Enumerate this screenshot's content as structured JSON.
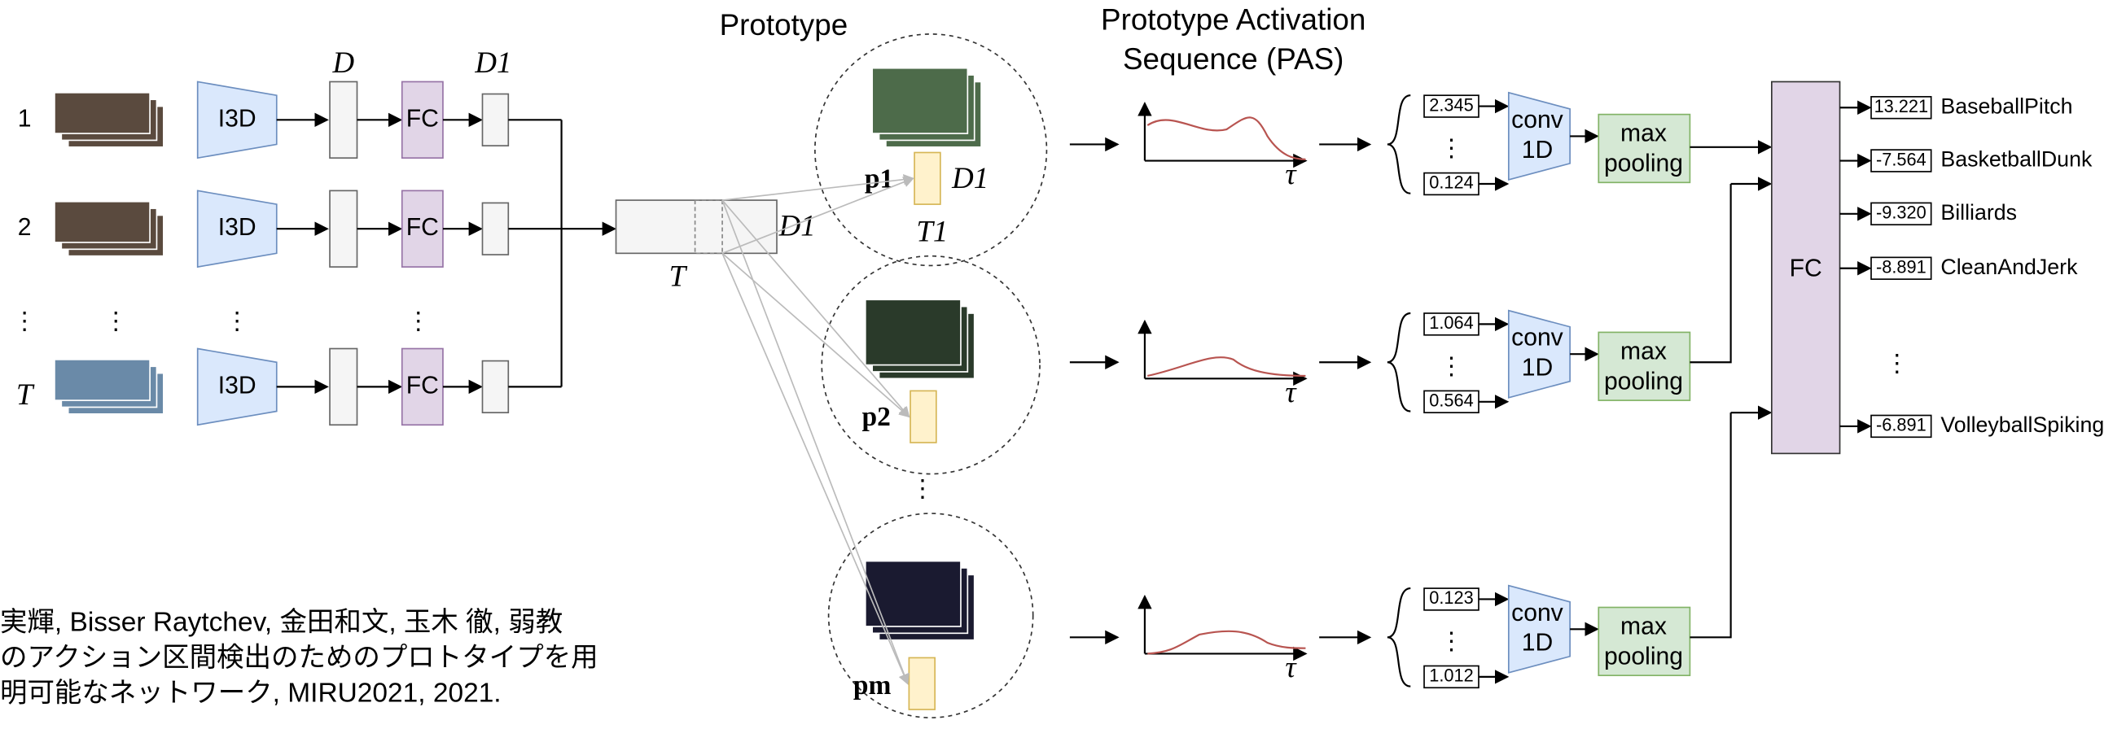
{
  "inputs": {
    "labels": [
      "1",
      "2",
      "⋮",
      "T"
    ],
    "encoder": "I3D",
    "fc": "FC",
    "dim_D": "D",
    "dim_D1": "D1",
    "vdots": "⋮"
  },
  "sequence": {
    "length": "T",
    "dim": "D1"
  },
  "prototype": {
    "title": "Prototype",
    "p1": "p1",
    "p2": "p2",
    "pm": "pm",
    "dim": "D1",
    "len": "T1",
    "dots": "⋮"
  },
  "pas": {
    "title_line1": "Prototype Activation",
    "title_line2": "Sequence (PAS)",
    "tau": "τ"
  },
  "branches": [
    {
      "top": "2.345",
      "bottom": "0.124"
    },
    {
      "top": "1.064",
      "bottom": "0.564"
    },
    {
      "top": "0.123",
      "bottom": "1.012"
    }
  ],
  "conv": [
    "conv",
    "1D"
  ],
  "pool": [
    "max",
    "pooling"
  ],
  "fc": "FC",
  "outputs": [
    {
      "score": "13.221",
      "name": "BaseballPitch"
    },
    {
      "score": "-7.564",
      "name": "BasketballDunk"
    },
    {
      "score": "-9.320",
      "name": "Billiards"
    },
    {
      "score": "-8.891",
      "name": "CleanAndJerk"
    },
    {
      "score": "-6.891",
      "name": "VolleyballSpiking"
    }
  ],
  "output_dots": "⋮",
  "citation": [
    "実輝, Bisser Raytchev, 金田和文, 玉木 徹, 弱教",
    "のアクション区間検出のためのプロトタイプを用",
    "明可能なネットワーク, MIRU2021, 2021."
  ]
}
